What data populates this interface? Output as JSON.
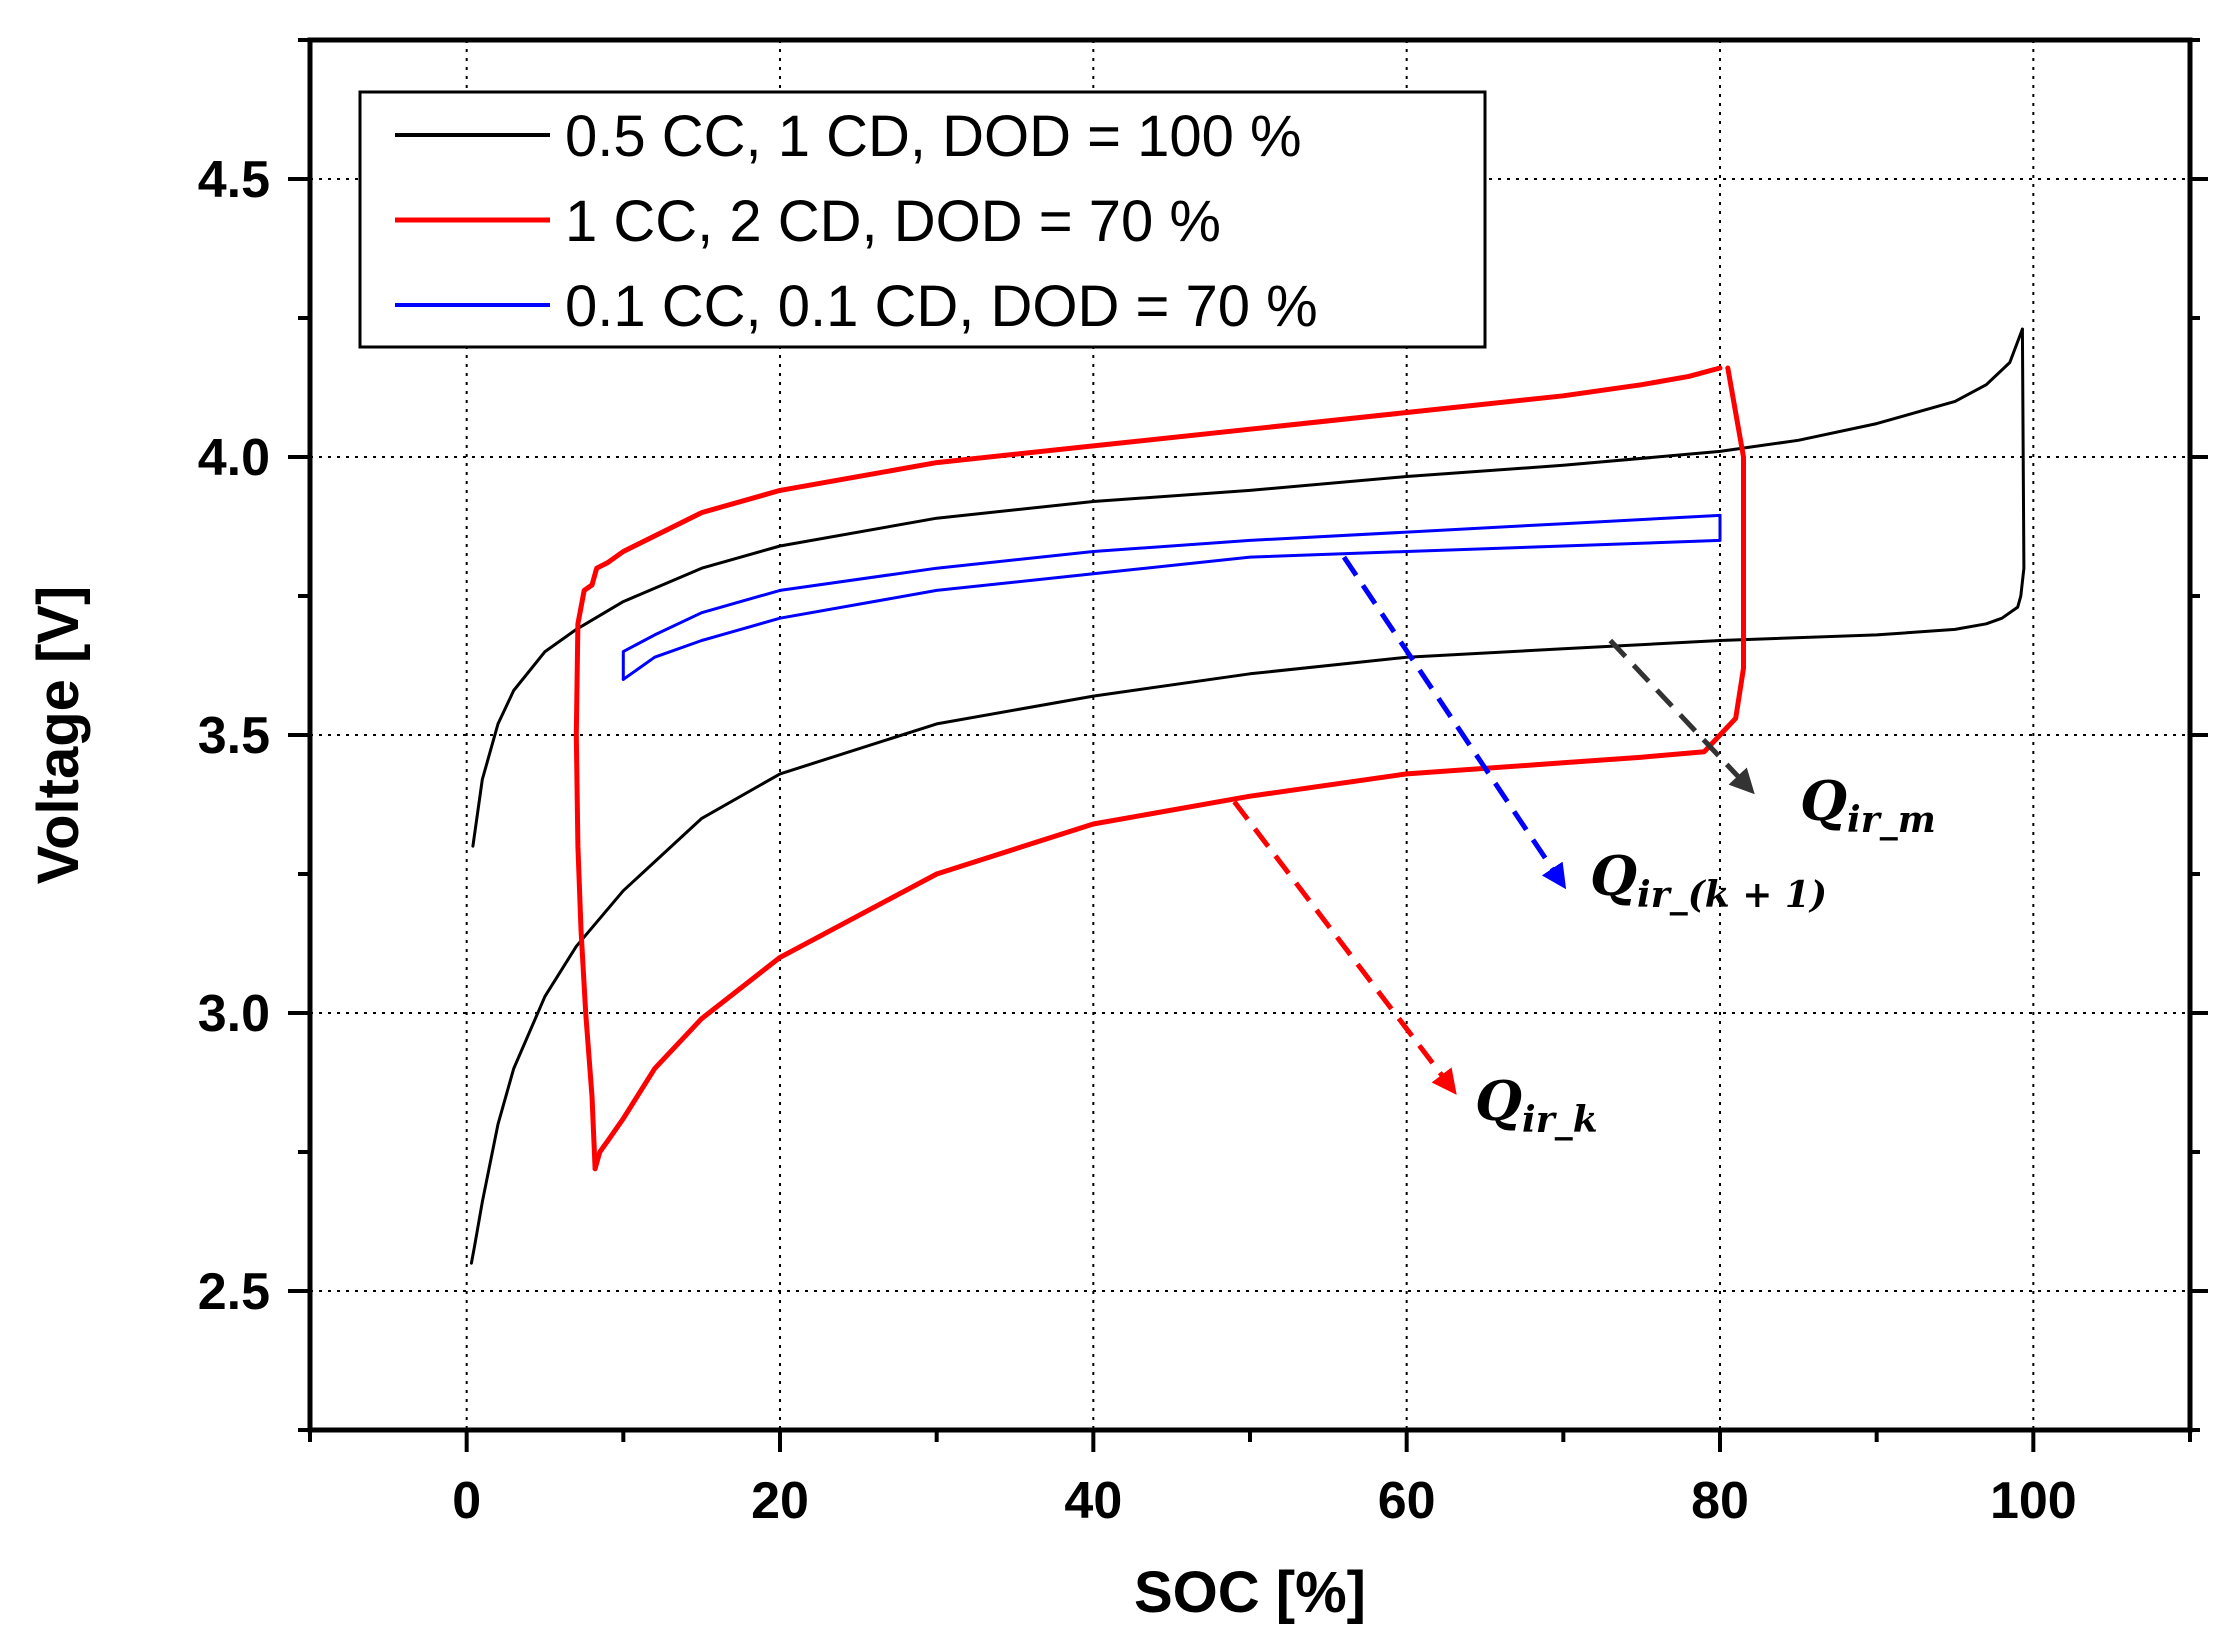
{
  "chart_data": {
    "type": "line",
    "title": "",
    "xlabel": "SOC [%]",
    "ylabel": "Voltage [V]",
    "xlim": [
      -10,
      110
    ],
    "ylim": [
      2.25,
      4.75
    ],
    "x_ticks": [
      0,
      20,
      40,
      60,
      80,
      100
    ],
    "x_minor_ticks": [
      -10,
      10,
      30,
      50,
      70,
      90,
      110
    ],
    "y_ticks": [
      2.5,
      3.0,
      3.5,
      4.0,
      4.5
    ],
    "y_minor_ticks": [
      2.25,
      2.75,
      3.25,
      3.75,
      4.25,
      4.75
    ],
    "x_tick_labels": [
      "0",
      "20",
      "40",
      "60",
      "80",
      "100"
    ],
    "y_tick_labels": [
      "2.5",
      "3.0",
      "3.5",
      "4.0",
      "4.5"
    ],
    "grid": true,
    "legend_position": "top-left",
    "series": [
      {
        "name": "0.5 CC, 1 CD, DOD = 100 %",
        "color": "#000000",
        "segments": [
          {
            "label": "charge",
            "x": [
              0.4,
              1,
              2,
              3,
              5,
              7,
              10,
              15,
              20,
              30,
              40,
              50,
              60,
              70,
              80,
              85,
              90,
              95,
              97,
              98.5,
              99.3
            ],
            "y": [
              3.3,
              3.42,
              3.52,
              3.58,
              3.65,
              3.69,
              3.74,
              3.8,
              3.84,
              3.89,
              3.92,
              3.94,
              3.965,
              3.985,
              4.01,
              4.03,
              4.06,
              4.1,
              4.13,
              4.17,
              4.23
            ]
          },
          {
            "label": "discharge",
            "x": [
              99.3,
              99.4,
              99.2,
              99.0,
              98,
              97,
              95,
              90,
              80,
              70,
              60,
              50,
              40,
              30,
              20,
              15,
              10,
              7,
              5,
              3,
              2,
              1,
              0.5,
              0.3
            ],
            "y": [
              4.23,
              3.8,
              3.75,
              3.73,
              3.71,
              3.7,
              3.69,
              3.68,
              3.67,
              3.655,
              3.64,
              3.61,
              3.57,
              3.52,
              3.43,
              3.35,
              3.22,
              3.12,
              3.03,
              2.9,
              2.8,
              2.66,
              2.58,
              2.55
            ]
          }
        ]
      },
      {
        "name": "1 CC, 2 CD, DOD = 70 %",
        "color": "#ff0000",
        "segments": [
          {
            "label": "charge",
            "x": [
              8,
              8.3,
              9,
              10,
              15,
              20,
              30,
              40,
              50,
              60,
              70,
              75,
              78,
              80
            ],
            "y": [
              3.77,
              3.8,
              3.81,
              3.83,
              3.9,
              3.94,
              3.99,
              4.02,
              4.05,
              4.08,
              4.11,
              4.13,
              4.145,
              4.16
            ]
          },
          {
            "label": "discharge",
            "x": [
              80.5,
              81.5,
              81.5,
              81,
              80,
              79,
              75,
              70,
              60,
              50,
              40,
              30,
              20,
              15,
              12,
              10,
              9,
              8.5,
              8.2
            ],
            "y": [
              4.16,
              4.0,
              3.62,
              3.53,
              3.5,
              3.47,
              3.46,
              3.45,
              3.43,
              3.39,
              3.34,
              3.25,
              3.1,
              2.99,
              2.9,
              2.81,
              2.77,
              2.75,
              2.72
            ]
          },
          {
            "label": "recovery",
            "x": [
              8.2,
              8.0,
              7.6,
              7.3,
              7.1,
              7.0,
              7.1,
              7.5,
              8.0
            ],
            "y": [
              2.72,
              2.85,
              3.0,
              3.15,
              3.3,
              3.5,
              3.7,
              3.76,
              3.77
            ]
          }
        ]
      },
      {
        "name": "0.1 CC, 0.1 CD, DOD = 70 %",
        "color": "#0000ff",
        "segments": [
          {
            "label": "charge",
            "x": [
              10,
              10,
              12,
              15,
              20,
              30,
              40,
              50,
              60,
              70,
              80
            ],
            "y": [
              3.6,
              3.65,
              3.68,
              3.72,
              3.76,
              3.8,
              3.83,
              3.85,
              3.865,
              3.88,
              3.895
            ]
          },
          {
            "label": "discharge",
            "x": [
              80,
              80,
              70,
              60,
              50,
              40,
              30,
              20,
              15,
              12,
              10
            ],
            "y": [
              3.895,
              3.85,
              3.84,
              3.83,
              3.82,
              3.79,
              3.76,
              3.71,
              3.67,
              3.64,
              3.6
            ]
          }
        ]
      }
    ],
    "annotations": [
      {
        "id": "q_ir_m",
        "main": "Q",
        "sub": "ir_m",
        "color": "#333333",
        "arrow_from": [
          73,
          3.67
        ],
        "arrow_to": [
          82,
          3.4
        ]
      },
      {
        "id": "q_ir_k1",
        "main": "Q",
        "sub": "ir_(k + 1)",
        "color": "#0000ff",
        "arrow_from": [
          56,
          3.82
        ],
        "arrow_to": [
          70,
          3.23
        ]
      },
      {
        "id": "q_ir_k",
        "main": "Q",
        "sub": "ir_k",
        "color": "#ff0000",
        "arrow_from": [
          49,
          3.38
        ],
        "arrow_to": [
          63,
          2.86
        ]
      }
    ]
  }
}
